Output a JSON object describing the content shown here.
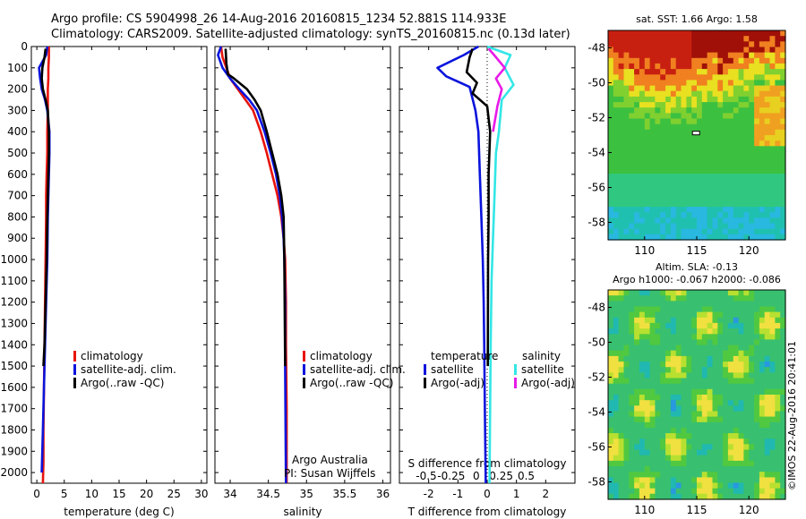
{
  "header": {
    "line1": "Argo profile: CS 5904998_26 14-Aug-2016 20160815_1234 52.881S 114.933E",
    "line2": "Climatology: CARS2009. Satellite-adjusted climatology: synTS_20160815.nc (0.13d later)"
  },
  "stamp": "©IMOS 22-Aug-2016 20:41:01",
  "colors": {
    "climatology": "#e8140c",
    "satellite": "#0a14dc",
    "argo": "#000000",
    "sat_salinity": "#33e6e6",
    "argo_salinity": "#e81ae8"
  },
  "chart_data": [
    {
      "type": "line",
      "panel": "temperature",
      "xlabel": "temperature (deg C)",
      "ylabel": "",
      "xlim": [
        -1,
        31
      ],
      "ylim": [
        2050,
        0
      ],
      "xticks": [
        0,
        5,
        10,
        15,
        20,
        25,
        30
      ],
      "yticks": [
        0,
        100,
        200,
        300,
        400,
        500,
        600,
        700,
        800,
        900,
        1000,
        1100,
        1200,
        1300,
        1400,
        1500,
        1600,
        1700,
        1800,
        1900,
        2000
      ],
      "legend": [
        "climatology",
        "satellite-adj. clim.",
        "Argo(..raw -QC)"
      ],
      "legend_position": "lower-center",
      "series": [
        {
          "name": "climatology",
          "color": "#e8140c",
          "x": [
            2.2,
            2.2,
            2.1,
            2.1,
            2.0,
            2.0,
            1.9,
            1.9,
            1.8,
            1.7,
            1.7,
            1.6,
            1.5,
            1.4,
            1.3,
            1.2,
            1.2,
            1.1
          ],
          "y": [
            0,
            50,
            100,
            150,
            200,
            300,
            400,
            500,
            600,
            700,
            800,
            1000,
            1200,
            1400,
            1600,
            1800,
            1950,
            2050
          ]
        },
        {
          "name": "satellite-adj. clim.",
          "color": "#0a14dc",
          "x": [
            1.9,
            1.7,
            0.4,
            0.6,
            0.9,
            1.5,
            1.9,
            2.3,
            2.3,
            2.2,
            2.1,
            2.0,
            1.9,
            1.7,
            1.5,
            1.3,
            1.1,
            0.9
          ],
          "y": [
            0,
            40,
            100,
            150,
            200,
            250,
            300,
            400,
            500,
            600,
            700,
            800,
            1000,
            1200,
            1400,
            1600,
            1800,
            2000
          ]
        },
        {
          "name": "Argo(..raw -QC)",
          "color": "#000000",
          "x": [
            1.6,
            1.4,
            1.0,
            0.9,
            1.1,
            1.6,
            2.0,
            2.2,
            2.2,
            2.1,
            2.0,
            1.9,
            1.8,
            1.6,
            1.4,
            1.2
          ],
          "y": [
            10,
            50,
            100,
            150,
            200,
            250,
            300,
            400,
            500,
            600,
            700,
            800,
            1000,
            1200,
            1400,
            1500
          ]
        }
      ]
    },
    {
      "type": "line",
      "panel": "salinity",
      "xlabel": "salinity",
      "ylabel": "",
      "xlim": [
        33.8,
        36.1
      ],
      "ylim": [
        2050,
        0
      ],
      "xticks": [
        34,
        34.5,
        35,
        35.5,
        36
      ],
      "legend": [
        "climatology",
        "satellite-adj. clim.",
        "Argo(..raw -QC)"
      ],
      "legend_position": "lower-center",
      "annotations": [
        "Argo Australia",
        "PI: Susan Wijffels"
      ],
      "series": [
        {
          "name": "climatology",
          "color": "#e8140c",
          "x": [
            33.88,
            33.9,
            33.95,
            34.0,
            34.1,
            34.2,
            34.3,
            34.4,
            34.48,
            34.55,
            34.62,
            34.67,
            34.7,
            34.72,
            34.73,
            34.73,
            34.74,
            34.74
          ],
          "y": [
            0,
            50,
            100,
            150,
            200,
            250,
            300,
            400,
            500,
            600,
            700,
            800,
            900,
            1000,
            1200,
            1400,
            1700,
            2050
          ]
        },
        {
          "name": "satellite-adj. clim.",
          "color": "#0a14dc",
          "x": [
            33.88,
            33.84,
            33.9,
            34.0,
            34.12,
            34.25,
            34.35,
            34.45,
            34.53,
            34.6,
            34.65,
            34.68,
            34.7,
            34.71,
            34.72,
            34.72,
            34.73
          ],
          "y": [
            0,
            40,
            100,
            150,
            200,
            250,
            300,
            400,
            500,
            600,
            700,
            800,
            900,
            1000,
            1200,
            1500,
            2050
          ]
        },
        {
          "name": "Argo(..raw -QC)",
          "color": "#000000",
          "x": [
            33.94,
            33.95,
            33.97,
            34.05,
            34.22,
            34.32,
            34.4,
            34.48,
            34.55,
            34.62,
            34.67,
            34.7,
            34.71,
            34.72
          ],
          "y": [
            10,
            80,
            130,
            150,
            200,
            250,
            300,
            400,
            500,
            600,
            700,
            800,
            1000,
            1500
          ]
        }
      ]
    },
    {
      "type": "line",
      "panel": "difference",
      "xlabel": "T difference from climatology",
      "xlabel_top": "S difference from climatology",
      "ylabel": "",
      "xlim": [
        -3,
        3
      ],
      "ylim": [
        2050,
        0
      ],
      "xticks": [
        -2,
        -1,
        0,
        1,
        2
      ],
      "xticks_s": [
        -0.5,
        -0.25,
        0,
        0.25,
        0.5
      ],
      "legend_headers": [
        "temperature",
        "salinity"
      ],
      "legend": [
        "satellite",
        "Argo(-adj)",
        "satellite",
        "Argo(-adj)"
      ],
      "legend_position": "lower-center",
      "series": [
        {
          "name": "satellite",
          "variable": "temperature",
          "color": "#0a14dc",
          "x": [
            -0.3,
            -0.8,
            -1.7,
            -1.4,
            -0.6,
            -0.4,
            -0.3,
            -0.25,
            -0.2,
            -0.15,
            -0.12,
            -0.1,
            -0.08,
            -0.05
          ],
          "y": [
            0,
            40,
            100,
            140,
            190,
            300,
            400,
            600,
            800,
            1000,
            1200,
            1400,
            1700,
            2050
          ]
        },
        {
          "name": "Argo(-adj)",
          "variable": "temperature",
          "color": "#000000",
          "x": [
            -0.5,
            -0.6,
            -0.7,
            -0.35,
            -0.5,
            0.0,
            0.1,
            0.05,
            0.05,
            0.03,
            0.02
          ],
          "y": [
            10,
            50,
            120,
            170,
            220,
            280,
            400,
            600,
            800,
            1000,
            1500
          ]
        },
        {
          "name": "satellite",
          "variable": "salinity",
          "color": "#33e6e6",
          "x": [
            0.0,
            0.8,
            0.6,
            0.9,
            0.5,
            0.4,
            0.3,
            0.25,
            0.2,
            0.15,
            0.12,
            0.1,
            0.08
          ],
          "y": [
            0,
            40,
            100,
            180,
            250,
            400,
            500,
            700,
            900,
            1100,
            1400,
            1700,
            2050
          ]
        },
        {
          "name": "Argo(-adj)",
          "variable": "salinity",
          "color": "#e81ae8",
          "x": [
            0.05,
            0.3,
            0.6,
            0.3,
            0.5,
            0.35,
            0.2
          ],
          "y": [
            10,
            50,
            100,
            150,
            200,
            280,
            400
          ]
        }
      ]
    },
    {
      "type": "heatmap",
      "panel": "map_sst",
      "title": "sat. SST: 1.66 Argo: 1.58",
      "xlim": [
        106.5,
        123.5
      ],
      "ylim": [
        -59,
        -47
      ],
      "xticks": [
        110,
        115,
        120
      ],
      "yticks": [
        -48,
        -50,
        -52,
        -54,
        -56,
        -58
      ],
      "marker": {
        "lon": 114.933,
        "lat": -52.881
      }
    },
    {
      "type": "heatmap",
      "panel": "map_sla",
      "title": "Altim. SLA: -0.13",
      "subtitle": "Argo h1000: -0.067 h2000: -0.086",
      "xlim": [
        106.5,
        123.5
      ],
      "ylim": [
        -59,
        -47
      ],
      "xticks": [
        110,
        115,
        120
      ],
      "yticks": [
        -48,
        -50,
        -52,
        -54,
        -56,
        -58
      ]
    }
  ]
}
